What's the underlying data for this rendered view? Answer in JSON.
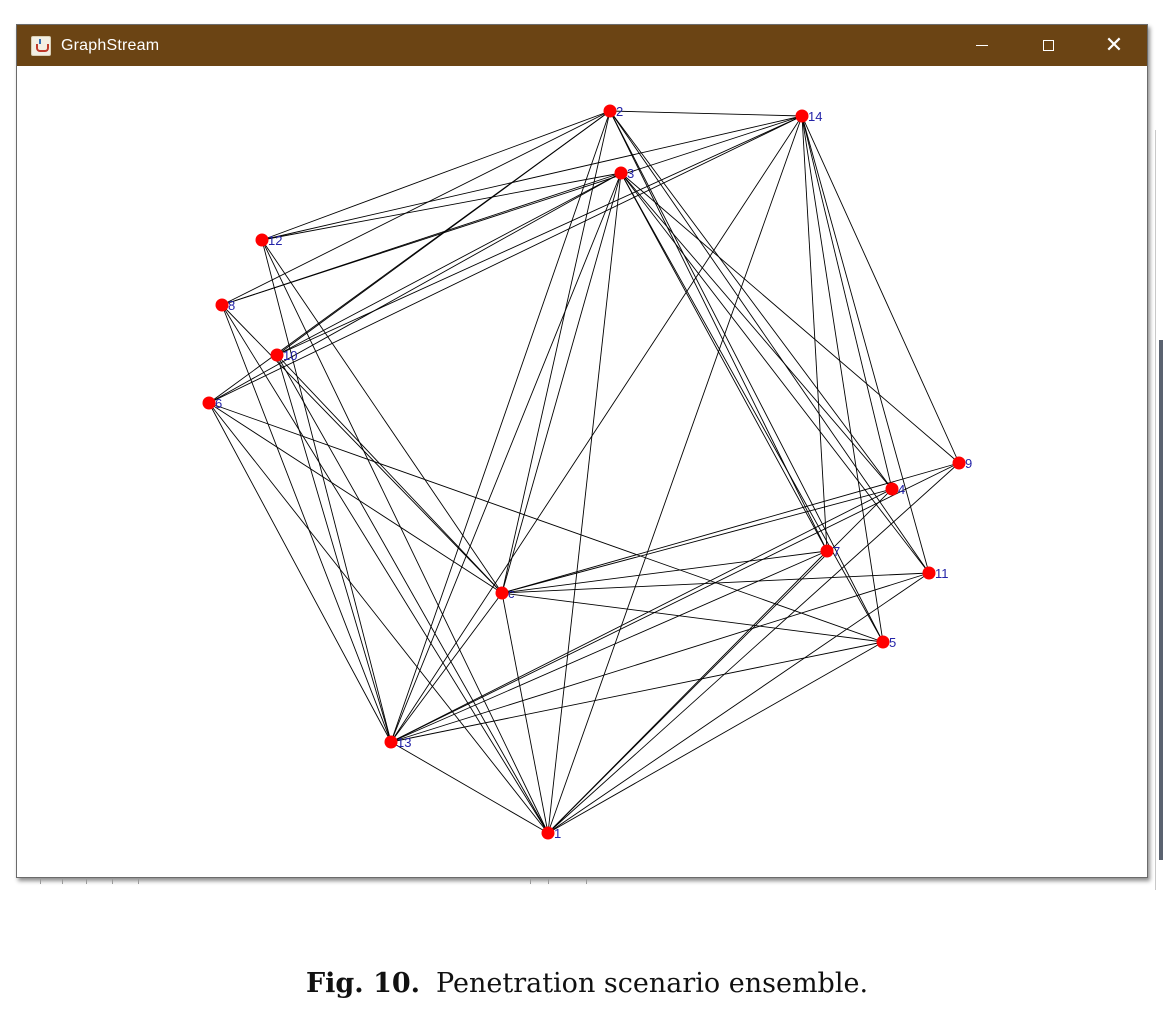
{
  "window": {
    "title": "GraphStream",
    "title_bar_color": "#6b4414",
    "icon": "java-cup-icon",
    "controls": {
      "minimize_icon": "minimize-icon",
      "maximize_icon": "maximize-icon",
      "close_icon": "close-icon"
    }
  },
  "graph": {
    "node_color": "#ff0000",
    "label_color": "#2323a8",
    "edge_color": "#000000",
    "nodes": [
      {
        "id": "1",
        "label": "1"
      },
      {
        "id": "2",
        "label": "2"
      },
      {
        "id": "3",
        "label": "3"
      },
      {
        "id": "4",
        "label": "4"
      },
      {
        "id": "5",
        "label": "5"
      },
      {
        "id": "6",
        "label": "6"
      },
      {
        "id": "7",
        "label": "7"
      },
      {
        "id": "8",
        "label": "8"
      },
      {
        "id": "9",
        "label": "9"
      },
      {
        "id": "10",
        "label": "10"
      },
      {
        "id": "11",
        "label": "11"
      },
      {
        "id": "12",
        "label": "12"
      },
      {
        "id": "13",
        "label": "13"
      },
      {
        "id": "14",
        "label": "14"
      },
      {
        "id": "c",
        "label": "c"
      }
    ],
    "edges": [
      [
        "2",
        "14"
      ],
      [
        "2",
        "12"
      ],
      [
        "2",
        "10"
      ],
      [
        "2",
        "13"
      ],
      [
        "2",
        "c"
      ],
      [
        "2",
        "7"
      ],
      [
        "2",
        "4"
      ],
      [
        "2",
        "11"
      ],
      [
        "2",
        "5"
      ],
      [
        "2",
        "8"
      ],
      [
        "2",
        "6"
      ],
      [
        "14",
        "12"
      ],
      [
        "14",
        "10"
      ],
      [
        "14",
        "13"
      ],
      [
        "14",
        "1"
      ],
      [
        "14",
        "9"
      ],
      [
        "14",
        "11"
      ],
      [
        "14",
        "4"
      ],
      [
        "14",
        "5"
      ],
      [
        "14",
        "7"
      ],
      [
        "14",
        "8"
      ],
      [
        "14",
        "6"
      ],
      [
        "3",
        "12"
      ],
      [
        "3",
        "8"
      ],
      [
        "3",
        "10"
      ],
      [
        "3",
        "6"
      ],
      [
        "3",
        "c"
      ],
      [
        "3",
        "13"
      ],
      [
        "3",
        "7"
      ],
      [
        "3",
        "4"
      ],
      [
        "3",
        "9"
      ],
      [
        "3",
        "11"
      ],
      [
        "3",
        "5"
      ],
      [
        "3",
        "1"
      ],
      [
        "12",
        "13"
      ],
      [
        "12",
        "1"
      ],
      [
        "12",
        "c"
      ],
      [
        "8",
        "13"
      ],
      [
        "8",
        "1"
      ],
      [
        "8",
        "c"
      ],
      [
        "10",
        "13"
      ],
      [
        "10",
        "1"
      ],
      [
        "10",
        "c"
      ],
      [
        "6",
        "13"
      ],
      [
        "6",
        "1"
      ],
      [
        "6",
        "c"
      ],
      [
        "6",
        "5"
      ],
      [
        "c",
        "4"
      ],
      [
        "c",
        "7"
      ],
      [
        "c",
        "11"
      ],
      [
        "c",
        "5"
      ],
      [
        "c",
        "9"
      ],
      [
        "c",
        "1"
      ],
      [
        "c",
        "13"
      ],
      [
        "13",
        "4"
      ],
      [
        "13",
        "7"
      ],
      [
        "13",
        "11"
      ],
      [
        "13",
        "5"
      ],
      [
        "13",
        "9"
      ],
      [
        "13",
        "1"
      ],
      [
        "1",
        "4"
      ],
      [
        "1",
        "7"
      ],
      [
        "1",
        "11"
      ],
      [
        "1",
        "5"
      ],
      [
        "1",
        "9"
      ]
    ]
  },
  "caption": {
    "label": "Fig. 10.",
    "text": "Penetration scenario ensemble."
  }
}
